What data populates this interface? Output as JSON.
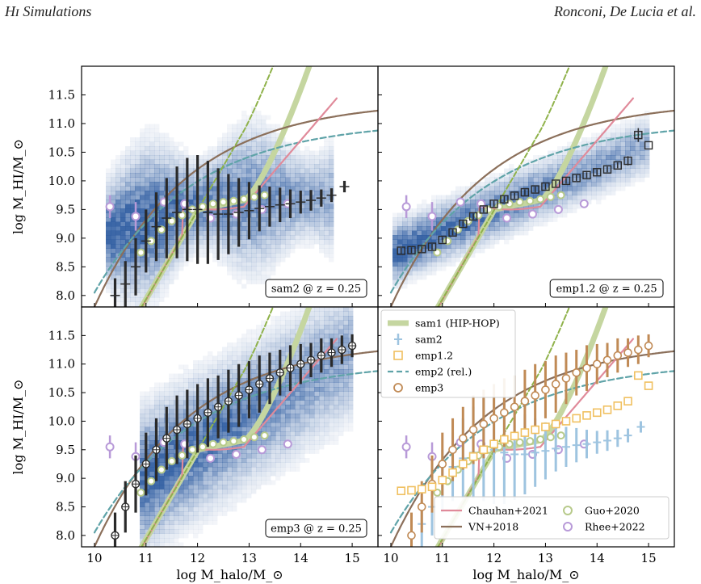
{
  "header": {
    "left": "Hɪ Simulations",
    "right": "Ronconi, De Lucia et al."
  },
  "axes": {
    "xlabel": "log M_halo/M_⊙",
    "ylabel": "log M_HI/M_⊙",
    "xlim": [
      9.75,
      15.5
    ],
    "ylim": [
      7.8,
      12.0
    ],
    "xticks": [
      "10",
      "11",
      "12",
      "13",
      "14",
      "15"
    ],
    "yticks": [
      "8.0",
      "8.5",
      "9.0",
      "9.5",
      "10.0",
      "10.5",
      "11.0",
      "11.5"
    ]
  },
  "colors": {
    "sam1": "#c5d6a0",
    "sam2": "#9ec4e0",
    "emp12": "#f0c060",
    "emp2": "#5fa3a8",
    "emp3": "#c08a55",
    "chauhan": "#e08a9a",
    "vn": "#8b6f5a",
    "guo": "#b7ca8a",
    "rhee": "#b89ad8",
    "dark": "#2a2a2a"
  },
  "chart_data": [
    {
      "type": "scatter",
      "panel": "top-left",
      "label": "sam2 @ z = 0.25",
      "medians": {
        "x": [
          10.4,
          10.6,
          10.8,
          11.0,
          11.2,
          11.4,
          11.6,
          11.8,
          12.0,
          12.2,
          12.4,
          12.6,
          12.8,
          13.0,
          13.2,
          13.4,
          13.6,
          13.8,
          14.0,
          14.2,
          14.4,
          14.6,
          14.85
        ],
        "y": [
          8.0,
          8.2,
          8.5,
          8.95,
          9.2,
          9.35,
          9.45,
          9.5,
          9.5,
          9.45,
          9.42,
          9.42,
          9.45,
          9.48,
          9.52,
          9.55,
          9.58,
          9.6,
          9.63,
          9.66,
          9.7,
          9.75,
          9.9
        ],
        "err": [
          0.3,
          0.4,
          0.5,
          0.55,
          0.6,
          0.7,
          0.8,
          0.9,
          0.95,
          0.9,
          0.8,
          0.7,
          0.6,
          0.5,
          0.4,
          0.35,
          0.3,
          0.25,
          0.2,
          0.18,
          0.15,
          0.12,
          0.1
        ]
      }
    },
    {
      "type": "scatter",
      "panel": "top-right",
      "label": "emp1.2 @ z = 0.25",
      "medians": {
        "x": [
          10.2,
          10.4,
          10.6,
          10.8,
          11.0,
          11.2,
          11.4,
          11.6,
          11.8,
          12.0,
          12.2,
          12.4,
          12.6,
          12.8,
          13.0,
          13.2,
          13.4,
          13.6,
          13.8,
          14.0,
          14.2,
          14.4,
          14.6,
          14.8,
          15.0
        ],
        "y": [
          8.78,
          8.79,
          8.81,
          8.85,
          8.97,
          9.1,
          9.25,
          9.38,
          9.5,
          9.6,
          9.68,
          9.74,
          9.8,
          9.85,
          9.9,
          9.95,
          10.0,
          10.05,
          10.1,
          10.15,
          10.2,
          10.27,
          10.35,
          10.8,
          10.62
        ],
        "err": [
          0.05,
          0.05,
          0.05,
          0.05,
          0.05,
          0.05,
          0.05,
          0.05,
          0.05,
          0.05,
          0.05,
          0.05,
          0.05,
          0.05,
          0.05,
          0.05,
          0.05,
          0.05,
          0.05,
          0.05,
          0.05,
          0.05,
          0.08,
          0.12,
          0.0
        ]
      }
    },
    {
      "type": "scatter",
      "panel": "bottom-left",
      "label": "emp3 @ z = 0.25",
      "medians": {
        "x": [
          10.4,
          10.6,
          10.8,
          11.0,
          11.2,
          11.4,
          11.6,
          11.8,
          12.0,
          12.2,
          12.4,
          12.6,
          12.8,
          13.0,
          13.2,
          13.4,
          13.6,
          13.8,
          14.0,
          14.2,
          14.4,
          14.6,
          14.8,
          15.0
        ],
        "y": [
          8.0,
          8.5,
          8.9,
          9.25,
          9.5,
          9.7,
          9.85,
          9.95,
          10.05,
          10.15,
          10.25,
          10.35,
          10.45,
          10.55,
          10.65,
          10.75,
          10.85,
          10.93,
          11.0,
          11.07,
          11.15,
          11.2,
          11.25,
          11.32
        ],
        "err": [
          0.4,
          0.45,
          0.5,
          0.55,
          0.55,
          0.55,
          0.6,
          0.6,
          0.6,
          0.6,
          0.55,
          0.55,
          0.55,
          0.5,
          0.5,
          0.45,
          0.4,
          0.4,
          0.35,
          0.3,
          0.3,
          0.25,
          0.25,
          0.2
        ]
      }
    },
    {
      "type": "scatter",
      "panel": "bottom-right",
      "label": "",
      "legend_top": [
        "sam1 (HIP-HOP)",
        "sam2",
        "emp1.2",
        "emp2 (rel.)",
        "emp3"
      ],
      "legend_bottom": [
        "Chauhan+2021",
        "VN+2018",
        "Guo+2020",
        "Rhee+2022"
      ]
    }
  ],
  "observations": {
    "guo": {
      "x": [
        10.9,
        11.1,
        11.3,
        11.5,
        11.7,
        11.9,
        12.1,
        12.3,
        12.5,
        12.7,
        12.9,
        13.1,
        13.3
      ],
      "y": [
        8.75,
        8.95,
        9.15,
        9.3,
        9.4,
        9.5,
        9.55,
        9.6,
        9.63,
        9.65,
        9.68,
        9.72,
        9.75
      ]
    },
    "rhee": {
      "x": [
        10.3,
        10.8,
        11.35,
        11.75,
        12.25,
        12.75,
        13.25,
        13.75
      ],
      "y": [
        9.55,
        9.38,
        9.63,
        9.6,
        9.35,
        9.42,
        9.5,
        9.6
      ],
      "err": [
        0.2,
        0.25,
        0.08,
        0.05,
        0.05,
        0.05,
        0.05,
        0.05
      ]
    }
  }
}
